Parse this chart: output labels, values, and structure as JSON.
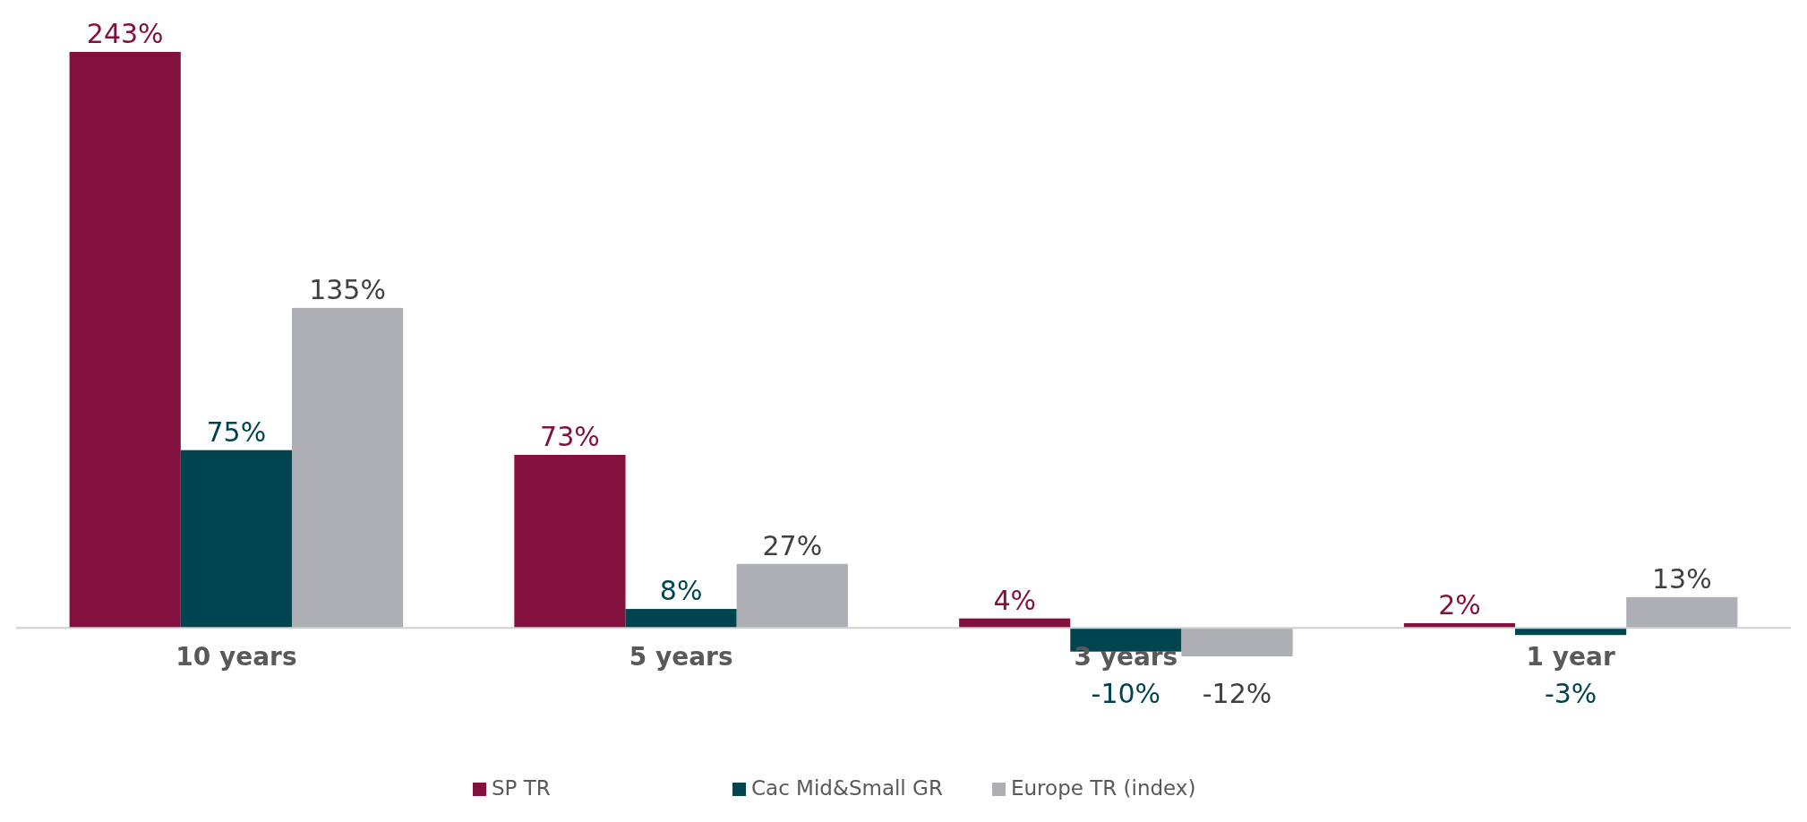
{
  "chart_data": {
    "type": "bar",
    "categories": [
      "10 years",
      "5 years",
      "3 years",
      "1 year"
    ],
    "tick_labels": "x",
    "legend": "bottom",
    "grid": false,
    "series": [
      {
        "name": "SP TR",
        "color": "#84103f",
        "values": [
          243,
          73,
          4,
          2
        ],
        "value_labels": [
          "243%",
          "73%",
          "4%",
          "2%"
        ]
      },
      {
        "name": "Cac Mid&Small GR",
        "color": "#00444f",
        "values": [
          75,
          8,
          -10,
          -3
        ],
        "value_labels": [
          "75%",
          "8%",
          "-10%",
          "-3%"
        ]
      },
      {
        "name": "Europe TR (index)",
        "color": "#aeaeb5",
        "values": [
          135,
          27,
          -12,
          13
        ],
        "value_labels": [
          "135%",
          "27%",
          "-12%",
          "13%"
        ]
      }
    ]
  }
}
